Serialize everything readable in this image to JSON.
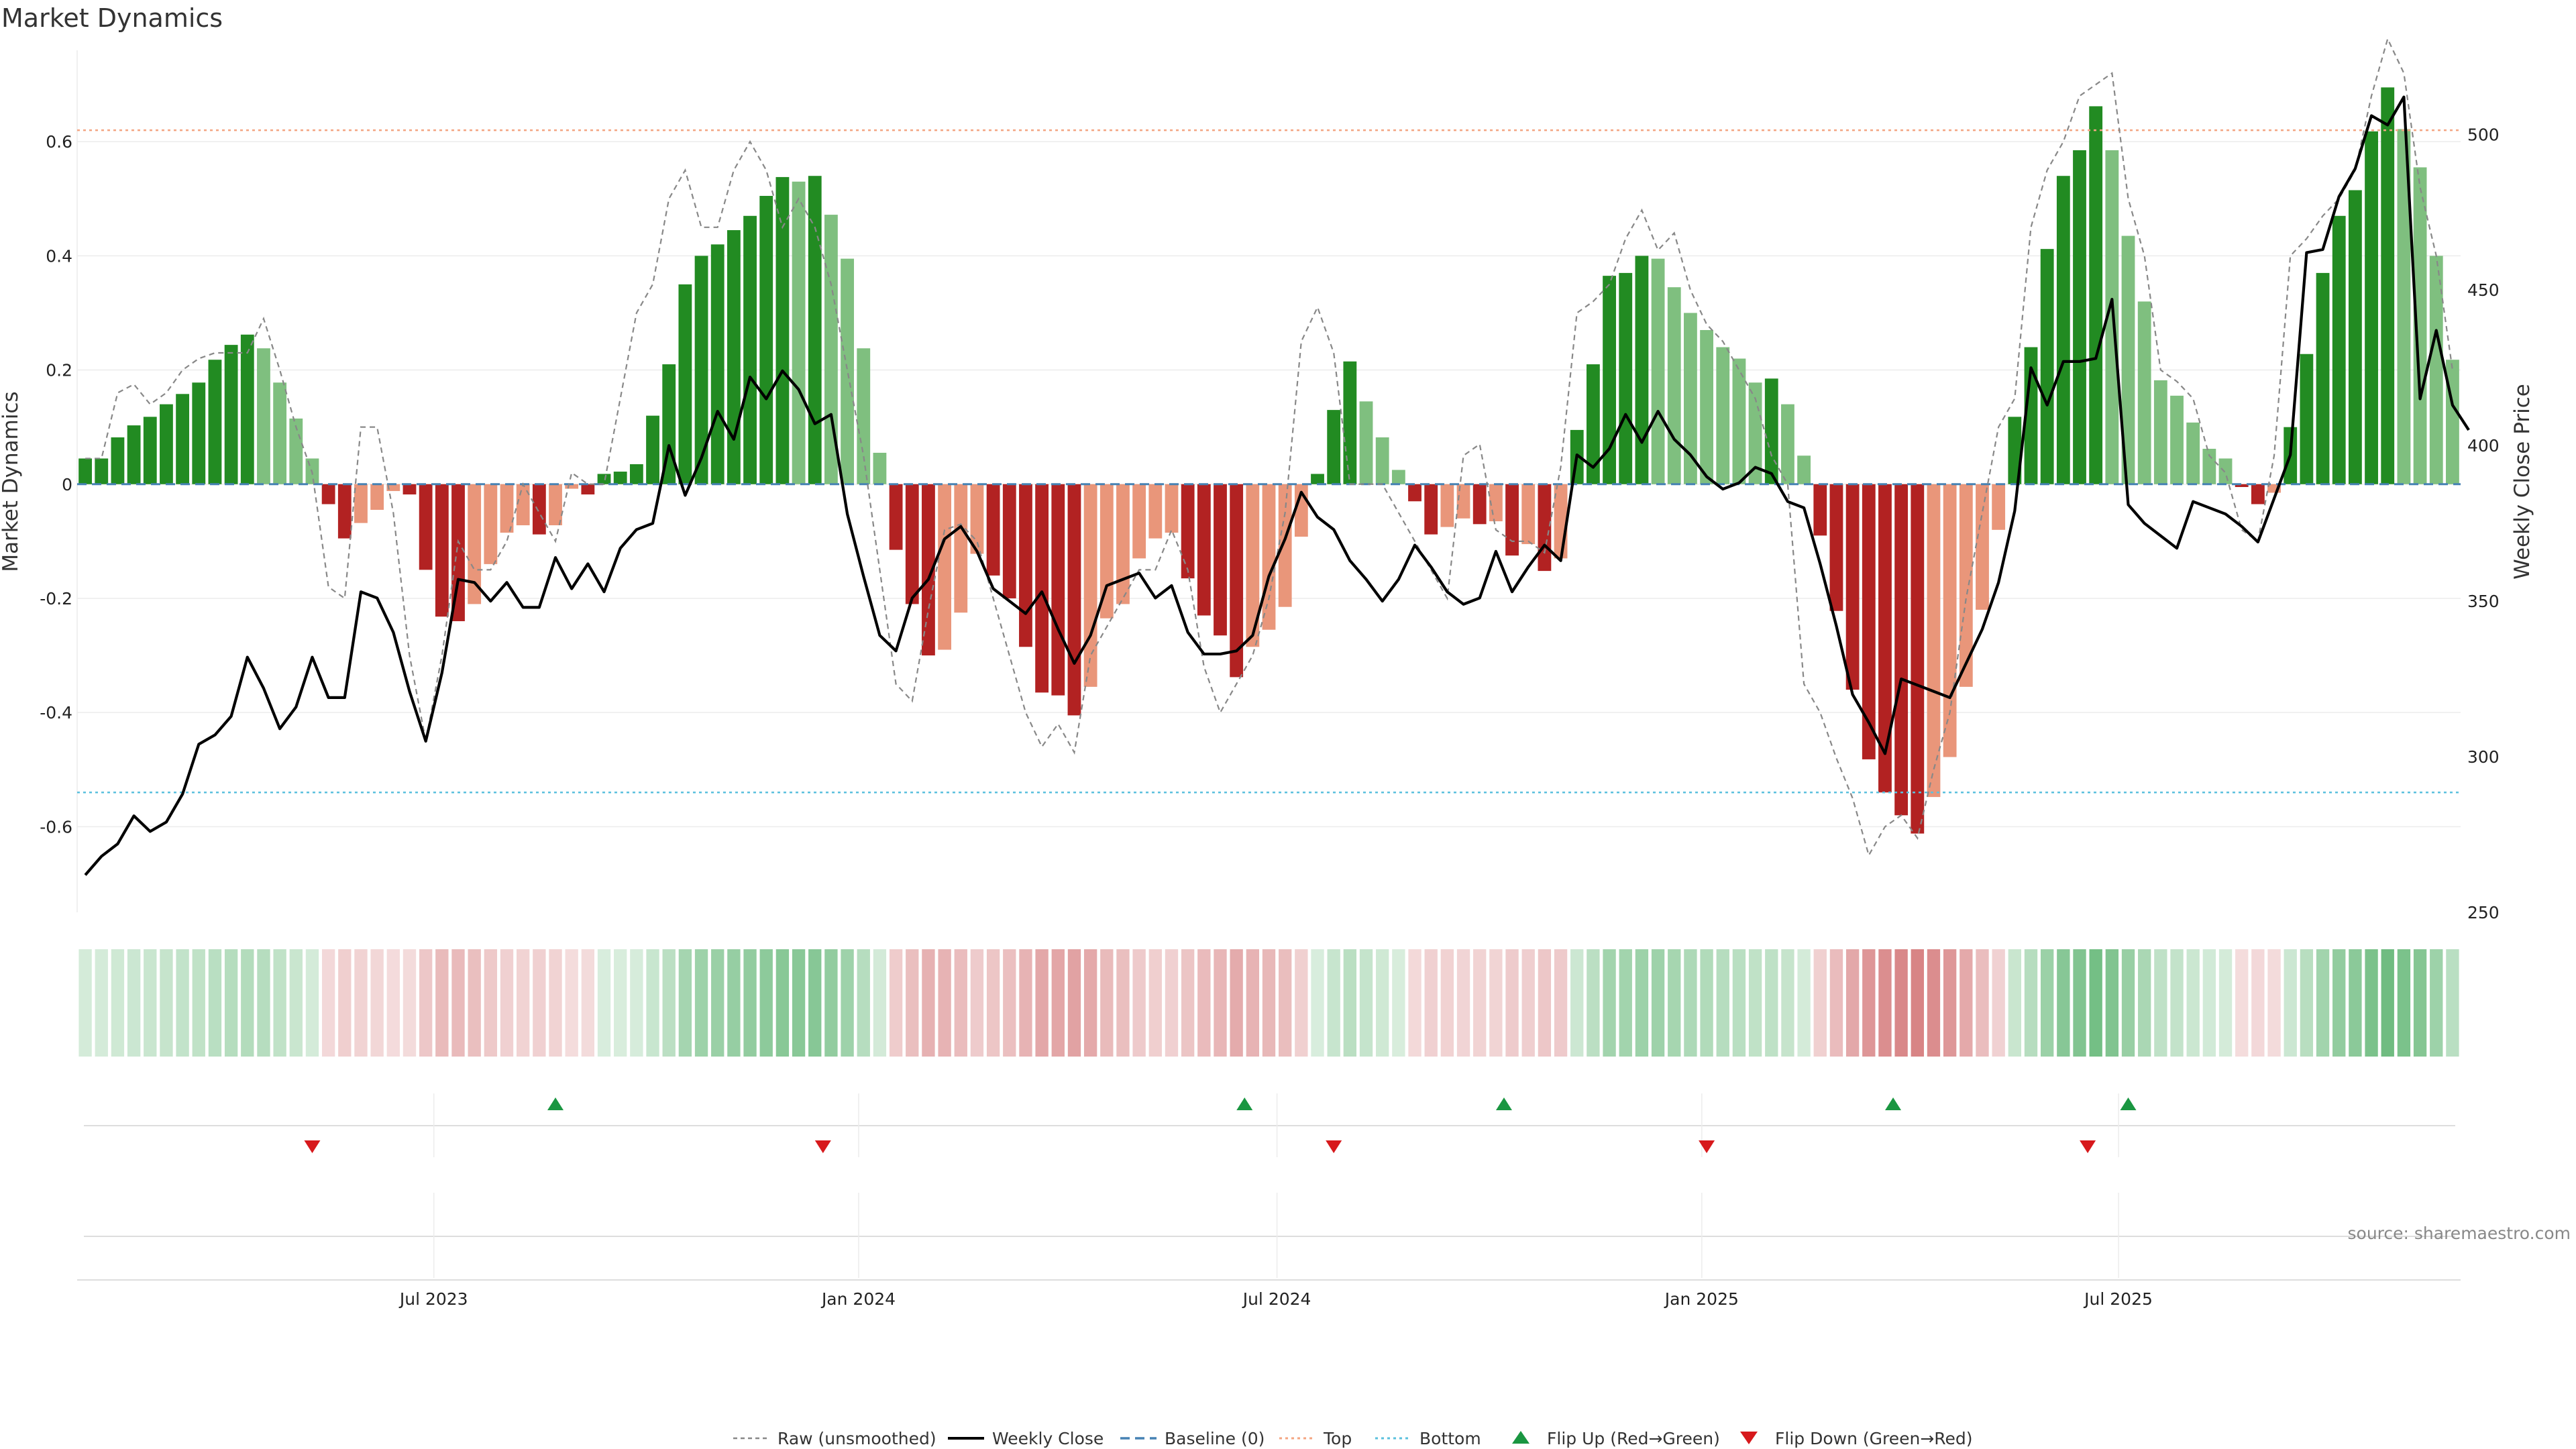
{
  "chart_data": {
    "type": "bar",
    "title": "Market Dynamics",
    "ylabel": "Market Dynamics",
    "ylabel_right": "Weekly Close Price",
    "source": "source: sharemaestro.com",
    "ylim": [
      -0.75,
      0.76
    ],
    "ylim_right": [
      250,
      527
    ],
    "yticks": [
      {
        "value": 0.6,
        "label": "0.6"
      },
      {
        "value": 0.4,
        "label": "0.4"
      },
      {
        "value": 0.2,
        "label": "0.2"
      },
      {
        "value": 0,
        "label": "0"
      },
      {
        "value": -0.2,
        "label": "-0.2"
      },
      {
        "value": -0.4,
        "label": "-0.4"
      },
      {
        "value": -0.6,
        "label": "-0.6"
      }
    ],
    "yticks_right": [
      {
        "value": 500,
        "label": "500"
      },
      {
        "value": 450,
        "label": "450"
      },
      {
        "value": 400,
        "label": "400"
      },
      {
        "value": 350,
        "label": "350"
      },
      {
        "value": 300,
        "label": "300"
      },
      {
        "value": 250,
        "label": "250"
      }
    ],
    "xticks": [
      {
        "week": 21.5,
        "label": "Jul 2023"
      },
      {
        "week": 47.7,
        "label": "Jan 2024"
      },
      {
        "week": 73.5,
        "label": "Jul 2024"
      },
      {
        "week": 99.7,
        "label": "Jan 2025"
      },
      {
        "week": 125.4,
        "label": "Jul 2025"
      }
    ],
    "top_level": 0.62,
    "bottom_level": -0.54,
    "baseline": 0,
    "smoothed": [
      0.045,
      0.045,
      0.082,
      0.103,
      0.118,
      0.14,
      0.158,
      0.178,
      0.218,
      0.244,
      0.262,
      0.238,
      0.178,
      0.115,
      0.045,
      -0.035,
      -0.095,
      -0.068,
      -0.045,
      -0.012,
      -0.018,
      -0.15,
      -0.232,
      -0.24,
      -0.21,
      -0.14,
      -0.085,
      -0.072,
      -0.088,
      -0.072,
      -0.008,
      -0.018,
      0.018,
      0.022,
      0.035,
      0.12,
      0.21,
      0.35,
      0.4,
      0.42,
      0.445,
      0.47,
      0.505,
      0.538,
      0.53,
      0.54,
      0.472,
      0.395,
      0.238,
      0.055,
      -0.115,
      -0.21,
      -0.3,
      -0.29,
      -0.225,
      -0.122,
      -0.16,
      -0.2,
      -0.285,
      -0.365,
      -0.37,
      -0.405,
      -0.355,
      -0.235,
      -0.21,
      -0.13,
      -0.095,
      -0.085,
      -0.165,
      -0.23,
      -0.265,
      -0.338,
      -0.285,
      -0.255,
      -0.215,
      -0.092,
      0.018,
      0.13,
      0.215,
      0.145,
      0.082,
      0.025,
      -0.03,
      -0.088,
      -0.075,
      -0.06,
      -0.07,
      -0.065,
      -0.125,
      -0.105,
      -0.152,
      -0.13,
      0.095,
      0.21,
      0.365,
      0.37,
      0.4,
      0.395,
      0.345,
      0.3,
      0.27,
      0.24,
      0.22,
      0.178,
      0.185,
      0.14,
      0.05,
      -0.09,
      -0.222,
      -0.36,
      -0.482,
      -0.54,
      -0.58,
      -0.612,
      -0.548,
      -0.478,
      -0.355,
      -0.22,
      -0.08,
      0.118,
      0.24,
      0.412,
      0.54,
      0.585,
      0.662,
      0.585,
      0.435,
      0.32,
      0.182,
      0.155,
      0.108,
      0.062,
      0.045,
      -0.005,
      -0.035,
      -0.015,
      0.1,
      0.228,
      0.37,
      0.47,
      0.515,
      0.618,
      0.695,
      0.622,
      0.555,
      0.4,
      0.218
    ],
    "raw": [
      0.045,
      0.045,
      0.16,
      0.175,
      0.14,
      0.16,
      0.2,
      0.22,
      0.23,
      0.23,
      0.23,
      0.29,
      0.2,
      0.1,
      0.02,
      -0.18,
      -0.2,
      0.1,
      0.1,
      -0.05,
      -0.3,
      -0.45,
      -0.3,
      -0.1,
      -0.15,
      -0.15,
      -0.1,
      0.0,
      -0.05,
      -0.1,
      0.02,
      0.0,
      0.0,
      0.15,
      0.3,
      0.35,
      0.5,
      0.55,
      0.45,
      0.45,
      0.55,
      0.6,
      0.55,
      0.45,
      0.5,
      0.45,
      0.35,
      0.2,
      0.05,
      -0.15,
      -0.35,
      -0.38,
      -0.22,
      -0.08,
      -0.07,
      -0.1,
      -0.2,
      -0.3,
      -0.4,
      -0.46,
      -0.42,
      -0.47,
      -0.3,
      -0.25,
      -0.2,
      -0.15,
      -0.15,
      -0.08,
      -0.15,
      -0.32,
      -0.4,
      -0.35,
      -0.3,
      -0.2,
      -0.05,
      0.25,
      0.31,
      0.23,
      0.0,
      0.0,
      0.0,
      -0.05,
      -0.1,
      -0.15,
      -0.2,
      0.05,
      0.07,
      -0.08,
      -0.1,
      -0.1,
      -0.12,
      0.03,
      0.3,
      0.32,
      0.35,
      0.43,
      0.48,
      0.41,
      0.44,
      0.34,
      0.28,
      0.25,
      0.2,
      0.15,
      0.05,
      0.0,
      -0.35,
      -0.4,
      -0.48,
      -0.55,
      -0.65,
      -0.6,
      -0.58,
      -0.62,
      -0.5,
      -0.4,
      -0.2,
      -0.05,
      0.1,
      0.15,
      0.45,
      0.55,
      0.6,
      0.68,
      0.7,
      0.72,
      0.5,
      0.4,
      0.2,
      0.18,
      0.15,
      0.05,
      0.02,
      -0.08,
      -0.1,
      0.05,
      0.4,
      0.43,
      0.47,
      0.5,
      0.55,
      0.68,
      0.78,
      0.72,
      0.52,
      0.4,
      0.2
    ],
    "price": [
      262,
      268,
      272,
      281,
      276,
      279,
      288,
      304,
      307,
      313,
      332,
      322,
      309,
      316,
      332,
      319,
      319,
      353,
      351,
      340,
      321,
      305,
      327,
      357,
      356,
      350,
      356,
      348,
      348,
      364,
      354,
      362,
      353,
      367,
      373,
      375,
      400,
      384,
      396,
      411,
      402,
      422,
      415,
      424,
      418,
      407,
      410,
      378,
      358,
      339,
      334,
      351,
      357,
      370,
      374,
      366,
      354,
      350,
      346,
      353,
      341,
      330,
      339,
      355,
      357,
      359,
      351,
      355,
      340,
      333,
      333,
      334,
      339,
      358,
      370,
      385,
      377,
      373,
      363,
      357,
      350,
      357,
      368,
      361,
      353,
      349,
      351,
      366,
      353,
      361,
      368,
      363,
      397,
      393,
      399,
      410,
      401,
      411,
      402,
      397,
      390,
      386,
      388,
      393,
      391,
      382,
      380,
      362,
      342,
      320,
      311,
      301,
      325,
      323,
      321,
      319,
      330,
      341,
      356,
      379,
      425,
      413,
      427,
      427,
      428,
      447,
      381,
      375,
      371,
      367,
      382,
      380,
      378,
      374,
      369,
      383,
      397,
      462,
      463,
      480,
      489,
      506,
      503,
      512,
      415,
      437,
      413,
      405
    ]
  },
  "flips": {
    "up": [
      29,
      71.5,
      87.5,
      111.5,
      126
    ],
    "down": [
      14,
      45.5,
      77,
      100,
      123.5
    ]
  },
  "legend": [
    {
      "key": "raw",
      "label": "Raw (unsmoothed)"
    },
    {
      "key": "close",
      "label": "Weekly Close"
    },
    {
      "key": "baseline",
      "label": "Baseline (0)"
    },
    {
      "key": "top",
      "label": "Top"
    },
    {
      "key": "bottom",
      "label": "Bottom"
    },
    {
      "key": "flipup",
      "label": "Flip Up (Red→Green)"
    },
    {
      "key": "flipdown",
      "label": "Flip Down (Green→Red)"
    }
  ],
  "colors": {
    "pos_strong": "#228b22",
    "pos_weak": "#7fbf7f",
    "neg_strong": "#b22222",
    "neg_weak": "#e9967a",
    "close_line": "#000000",
    "raw_line": "#888888",
    "baseline": "#4682b4",
    "top": "#f4a582",
    "bottom": "#5bc0de",
    "flip_up": "#1a9641",
    "flip_down": "#d7191c"
  }
}
